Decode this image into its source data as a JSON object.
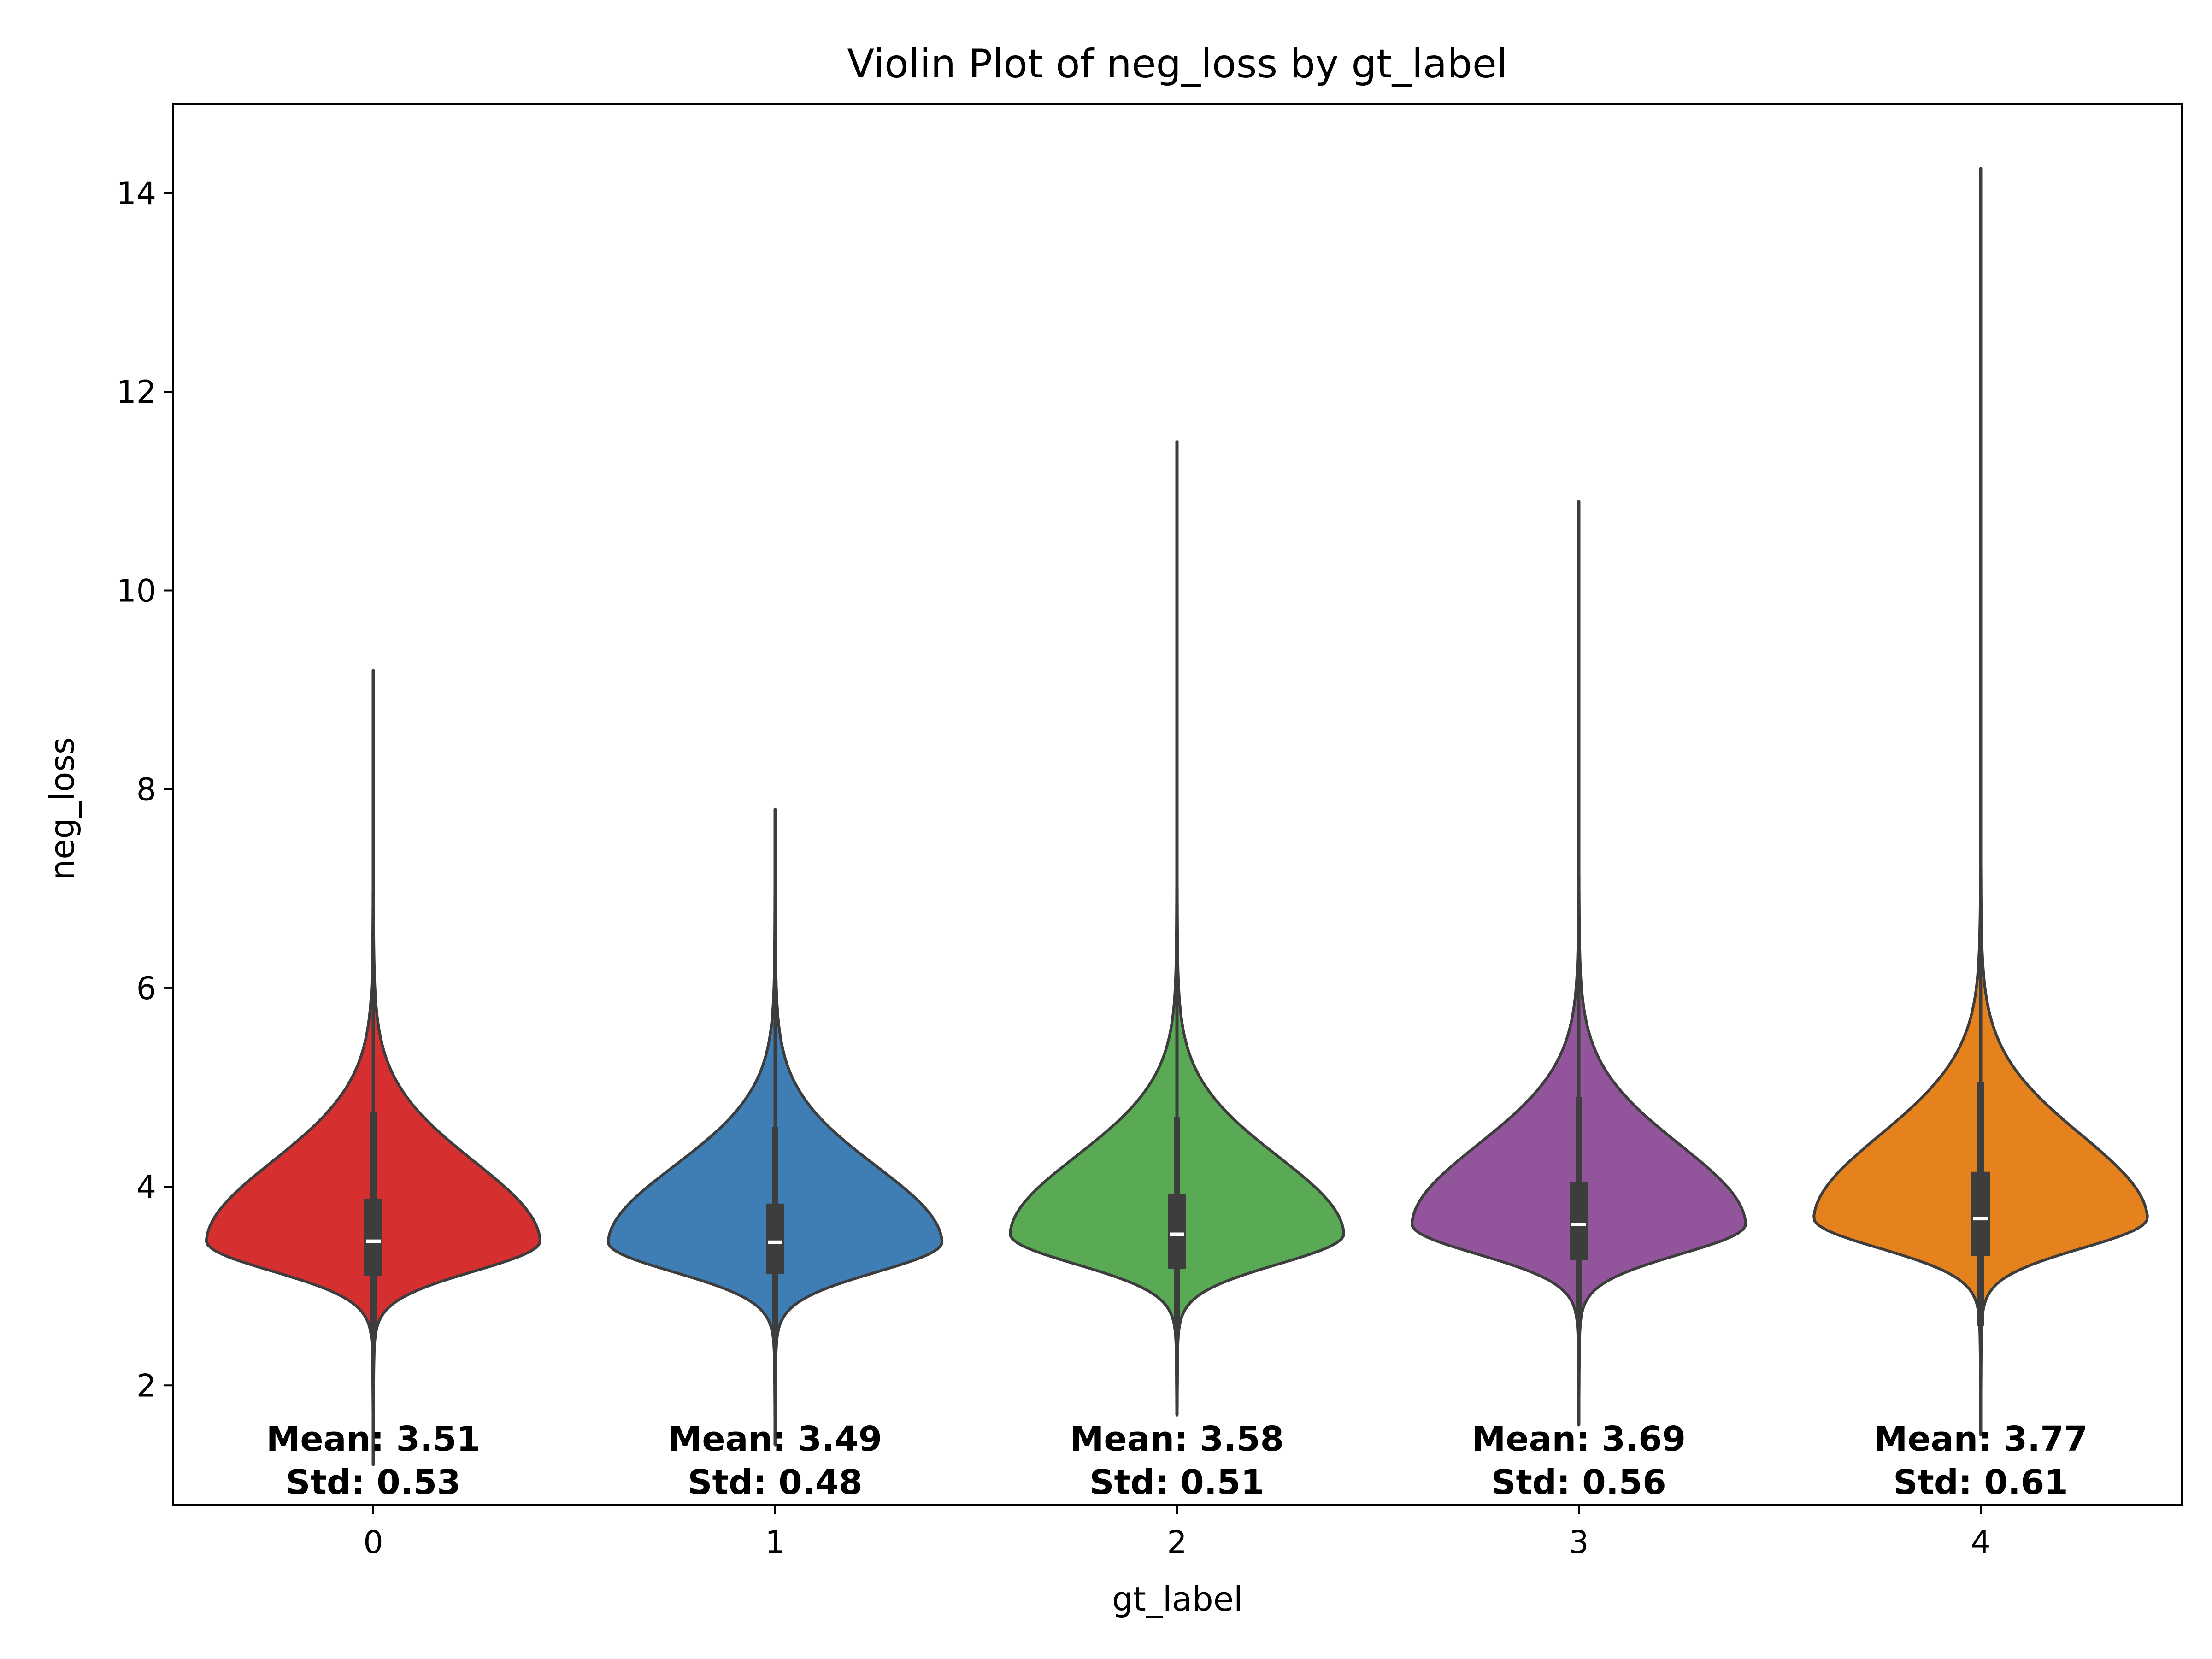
{
  "chart_data": {
    "type": "violin",
    "title": "Violin Plot of neg_loss by gt_label",
    "xlabel": "gt_label",
    "ylabel": "neg_loss",
    "categories": [
      "0",
      "1",
      "2",
      "3",
      "4"
    ],
    "ylim": [
      0.8,
      14.9
    ],
    "yticks": [
      2,
      4,
      6,
      8,
      10,
      12,
      14
    ],
    "grid": false,
    "legend": "none",
    "series": [
      {
        "category": "0",
        "color": "#d62f2f",
        "min": 1.2,
        "q1": 3.1,
        "median": 3.45,
        "q3": 3.88,
        "max": 9.2,
        "whisker_low": 2.5,
        "whisker_high": 4.75,
        "mean_label": "Mean: 3.51",
        "std_label": "Std: 0.53"
      },
      {
        "category": "1",
        "color": "#3f7db5",
        "min": 1.4,
        "q1": 3.12,
        "median": 3.44,
        "q3": 3.83,
        "max": 7.8,
        "whisker_low": 2.5,
        "whisker_high": 4.6,
        "mean_label": "Mean: 3.49",
        "std_label": "Std: 0.48"
      },
      {
        "category": "2",
        "color": "#5aaa55",
        "min": 1.7,
        "q1": 3.17,
        "median": 3.52,
        "q3": 3.93,
        "max": 11.5,
        "whisker_low": 2.6,
        "whisker_high": 4.7,
        "mean_label": "Mean: 3.58",
        "std_label": "Std: 0.51"
      },
      {
        "category": "3",
        "color": "#92559c",
        "min": 1.6,
        "q1": 3.26,
        "median": 3.62,
        "q3": 4.05,
        "max": 10.9,
        "whisker_low": 2.6,
        "whisker_high": 4.9,
        "mean_label": "Mean: 3.69",
        "std_label": "Std: 0.56"
      },
      {
        "category": "4",
        "color": "#e5821e",
        "min": 1.5,
        "q1": 3.3,
        "median": 3.68,
        "q3": 4.15,
        "max": 14.25,
        "whisker_low": 2.6,
        "whisker_high": 5.05,
        "mean_label": "Mean: 3.77",
        "std_label": "Std: 0.61"
      }
    ]
  }
}
